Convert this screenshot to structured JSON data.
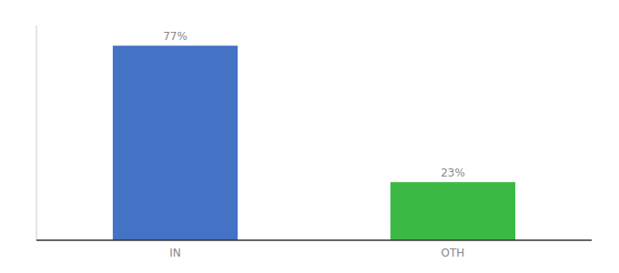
{
  "chart_data": {
    "type": "bar",
    "categories": [
      "IN",
      "OTH"
    ],
    "values": [
      77,
      23
    ],
    "value_labels": [
      "77%",
      "23%"
    ],
    "colors": [
      "#4472c4",
      "#3cb944"
    ],
    "ylim": [
      0,
      85
    ],
    "data_labels": true,
    "tick_labels": "x",
    "grid": false
  }
}
